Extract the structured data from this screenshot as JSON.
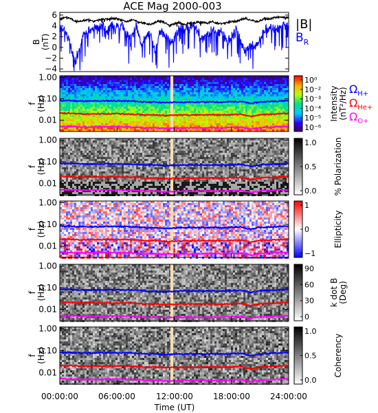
{
  "title": "ACE Mag 2000-003",
  "xaxis": {
    "label": "Time (UT)",
    "ticks": [
      "00:00:00",
      "06:00:00",
      "12:00:00",
      "18:00:00",
      "24:00:00"
    ],
    "range_hours": [
      0,
      24
    ]
  },
  "chart_data": [
    {
      "type": "line",
      "panel": "magnetic-field",
      "ylabel": "B",
      "yunits": "(nT)",
      "ylim": [
        -4.5,
        6.5
      ],
      "yticks": [
        "6",
        "4",
        "2",
        "0",
        "-2",
        "-4"
      ],
      "series": [
        {
          "name": "|B|",
          "color": "#000000",
          "x": [
            0,
            0.5,
            1,
            1.5,
            2,
            2.5,
            3,
            3.5,
            4,
            4.5,
            5,
            5.5,
            6,
            6.5,
            7,
            7.5,
            8,
            8.5,
            9,
            9.5,
            10,
            10.5,
            11,
            11.5,
            12,
            12.5,
            13,
            13.5,
            14,
            14.5,
            15,
            15.5,
            16,
            16.5,
            17,
            17.5,
            18,
            18.5,
            19,
            19.5,
            20,
            20.5,
            21,
            21.5,
            22,
            22.5,
            23,
            23.5,
            24
          ],
          "values": [
            5.3,
            5.5,
            5.5,
            5.0,
            4.8,
            5.0,
            5.1,
            4.8,
            5.0,
            5.3,
            5.2,
            5.4,
            5.3,
            5.0,
            4.8,
            5.1,
            5.0,
            4.6,
            4.4,
            4.3,
            4.6,
            5.0,
            4.6,
            4.0,
            4.4,
            4.6,
            4.2,
            4.5,
            4.5,
            4.7,
            4.6,
            4.5,
            4.8,
            4.5,
            4.4,
            4.6,
            4.8,
            4.8,
            5.2,
            5.4,
            5.1,
            4.8,
            4.9,
            5.4,
            5.3,
            5.5,
            5.7,
            5.6,
            5.6
          ]
        },
        {
          "name": "B",
          "subscript": "R",
          "color": "#0000ff",
          "x": [
            0,
            0.5,
            1,
            1.5,
            2,
            2.5,
            3,
            3.5,
            4,
            4.5,
            5,
            5.5,
            6,
            6.5,
            7,
            7.5,
            8,
            8.5,
            9,
            9.5,
            10,
            10.5,
            11,
            11.5,
            12,
            12.5,
            13,
            13.5,
            14,
            14.5,
            15,
            15.5,
            16,
            16.5,
            17,
            17.5,
            18,
            18.5,
            19,
            19.5,
            20,
            20.5,
            21,
            21.5,
            22,
            22.5,
            23,
            23.5,
            24
          ],
          "values": [
            4.0,
            3.5,
            1.0,
            -2.0,
            -1.0,
            2.5,
            3.0,
            4.0,
            3.5,
            4.2,
            3.0,
            4.2,
            4.0,
            4.5,
            2.5,
            1.5,
            4.0,
            1.0,
            2.0,
            2.5,
            -0.5,
            3.0,
            2.5,
            1.0,
            1.5,
            3.5,
            3.5,
            3.8,
            4.0,
            3.0,
            1.5,
            2.5,
            3.5,
            2.5,
            3.0,
            1.0,
            2.0,
            3.5,
            1.0,
            -1.0,
            0.5,
            0.5,
            1.5,
            3.5,
            3.5,
            3.5,
            3.5,
            4.0,
            3.8
          ]
        }
      ]
    },
    {
      "type": "heatmap",
      "panel": "intensity",
      "ylabel": "f",
      "yunits": "(Hz)",
      "ytick_labels": [
        "1.00",
        "0.10",
        "0.01"
      ],
      "yticks": [
        1.0,
        0.1,
        0.01
      ],
      "ylim": [
        0.003,
        1.2
      ],
      "colorbar": {
        "label": "Intensity",
        "units": "(nT²/Hz)",
        "ticks": [
          "10⁰",
          "10⁻²",
          "10⁻³",
          "10⁻⁴",
          "10⁻⁵",
          "10⁻⁶"
        ],
        "scale": "rainbow"
      }
    },
    {
      "type": "heatmap",
      "panel": "polarization",
      "ylabel": "f",
      "yunits": "(Hz)",
      "ytick_labels": [
        "1.00",
        "0.10",
        "0.01"
      ],
      "colorbar": {
        "label": "% Polarization",
        "ticks": [
          "1.0",
          "0.5",
          "0.0"
        ],
        "scale": "grayscale"
      }
    },
    {
      "type": "heatmap",
      "panel": "ellipticity",
      "ylabel": "f",
      "yunits": "(Hz)",
      "ytick_labels": [
        "1.00",
        "0.10",
        "0.01"
      ],
      "colorbar": {
        "label": "Ellipticity",
        "ticks": [
          "1",
          "0",
          "−1"
        ],
        "scale": "blue-white-red"
      }
    },
    {
      "type": "heatmap",
      "panel": "k-dot-b",
      "ylabel": "f",
      "yunits": "(Hz)",
      "ytick_labels": [
        "1.00",
        "0.10",
        "0.01"
      ],
      "colorbar": {
        "label": "k dot B",
        "units": "(Deg)",
        "ticks": [
          "90",
          "60",
          "30",
          "0"
        ],
        "scale": "grayscale"
      }
    },
    {
      "type": "heatmap",
      "panel": "coherency",
      "ylabel": "f",
      "yunits": "(Hz)",
      "ytick_labels": [
        "1.00",
        "0.10",
        "0.01"
      ],
      "colorbar": {
        "label": "Coherency",
        "ticks": [
          "1.0",
          "0.5",
          "0.0"
        ],
        "scale": "grayscale"
      }
    }
  ],
  "gyrofrequencies": {
    "x": [
      0,
      1,
      2,
      3,
      4,
      5,
      6,
      7,
      8,
      9,
      10,
      11,
      12,
      13,
      14,
      15,
      16,
      17,
      18,
      19,
      20,
      21,
      22,
      23,
      24
    ],
    "lines": [
      {
        "name": "Ω",
        "subscript": "H+",
        "color": "#0000ff",
        "values": [
          0.083,
          0.083,
          0.079,
          0.078,
          0.079,
          0.081,
          0.08,
          0.079,
          0.077,
          0.07,
          0.072,
          0.066,
          0.069,
          0.07,
          0.071,
          0.071,
          0.072,
          0.07,
          0.073,
          0.076,
          0.06,
          0.072,
          0.075,
          0.08,
          0.083
        ]
      },
      {
        "name": "Ω",
        "subscript": "He+",
        "color": "#ff0000",
        "values": [
          0.021,
          0.021,
          0.02,
          0.0195,
          0.02,
          0.02,
          0.02,
          0.0198,
          0.0192,
          0.0175,
          0.018,
          0.0165,
          0.0172,
          0.0175,
          0.0178,
          0.0178,
          0.018,
          0.0175,
          0.0182,
          0.019,
          0.015,
          0.018,
          0.0188,
          0.02,
          0.021
        ]
      },
      {
        "name": "Ω",
        "subscript": "O+",
        "color": "#ff00ff",
        "values": [
          0.0052,
          0.0052,
          0.0049,
          0.0049,
          0.0049,
          0.0051,
          0.005,
          0.0049,
          0.0048,
          0.0044,
          0.0045,
          0.0041,
          0.0043,
          0.0044,
          0.0044,
          0.0044,
          0.0045,
          0.0044,
          0.0046,
          0.0048,
          0.0038,
          0.0045,
          0.0047,
          0.005,
          0.0052
        ]
      }
    ]
  },
  "data_gap": {
    "start_hour": 11.6,
    "end_hour": 11.9,
    "color": "#f5deb3"
  }
}
